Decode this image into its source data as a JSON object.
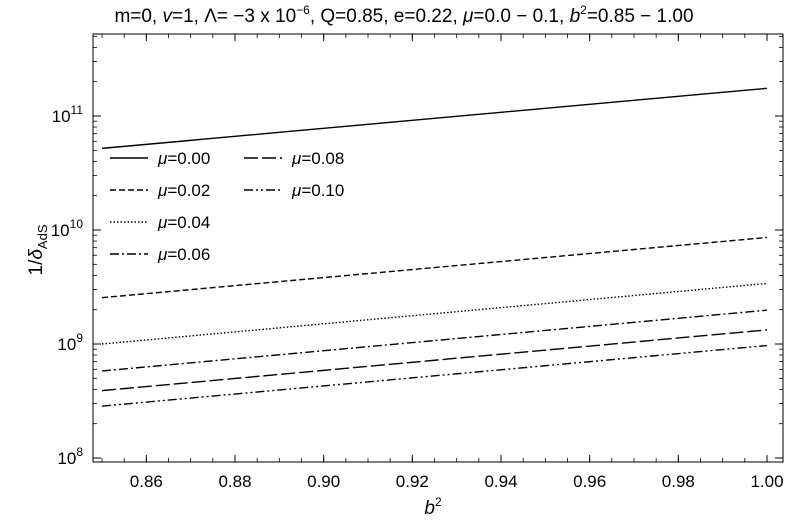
{
  "chart_data": {
    "type": "line",
    "title": {
      "t1": "m=0, ",
      "t2": "v",
      "t3": "=1, Λ= −3 x 10",
      "t4": "−6",
      "t5": ", Q=0.85, e=0.22, ",
      "t6": "μ",
      "t7": "=0.0 − 0.1, ",
      "t8": "b",
      "t9": "2",
      "t10": "=0.85 − 1.00"
    },
    "xlabel": {
      "base": "b",
      "sup": "2"
    },
    "ylabel": {
      "pre": "1/",
      "greek": "δ",
      "sub": "AdS"
    },
    "xlim": [
      0.85,
      1.0
    ],
    "ylim": [
      100000000.0,
      1000000000000.0
    ],
    "yscale": "log",
    "grid": false,
    "legend_position": "upper-left",
    "x_ticks": [
      "0.86",
      "0.88",
      "0.90",
      "0.92",
      "0.94",
      "0.96",
      "0.98",
      "1.00"
    ],
    "y_ticks": [
      {
        "value": 100000000.0,
        "base": "10",
        "exp": "8"
      },
      {
        "value": 1000000000.0,
        "base": "10",
        "exp": "9"
      },
      {
        "value": 10000000000.0,
        "base": "10",
        "exp": "10"
      },
      {
        "value": 100000000000.0,
        "base": "10",
        "exp": "11"
      }
    ],
    "x": [
      0.85,
      1.0
    ],
    "series": [
      {
        "name": "μ=0.00",
        "values": [
          52000000000.0,
          175000000000.0
        ],
        "color": "#000000",
        "dash": ""
      },
      {
        "name": "μ=0.02",
        "values": [
          2550000000.0,
          8600000000.0
        ],
        "color": "#000000",
        "dash": "6,3"
      },
      {
        "name": "μ=0.04",
        "values": [
          1000000000.0,
          3400000000.0
        ],
        "color": "#000000",
        "dash": "1.5,2"
      },
      {
        "name": "μ=0.06",
        "values": [
          580000000.0,
          1980000000.0
        ],
        "color": "#000000",
        "dash": "9,3,2,3"
      },
      {
        "name": "μ=0.08",
        "values": [
          390000000.0,
          1330000000.0
        ],
        "color": "#000000",
        "dash": "14,4"
      },
      {
        "name": "μ=0.10",
        "values": [
          285000000.0,
          970000000.0
        ],
        "color": "#000000",
        "dash": "9,3,2,3,2,3"
      }
    ],
    "legend": {
      "columns": [
        [
          "μ=0.00",
          "μ=0.02",
          "μ=0.04",
          "μ=0.06"
        ],
        [
          "μ=0.08",
          "μ=0.10"
        ]
      ]
    }
  }
}
